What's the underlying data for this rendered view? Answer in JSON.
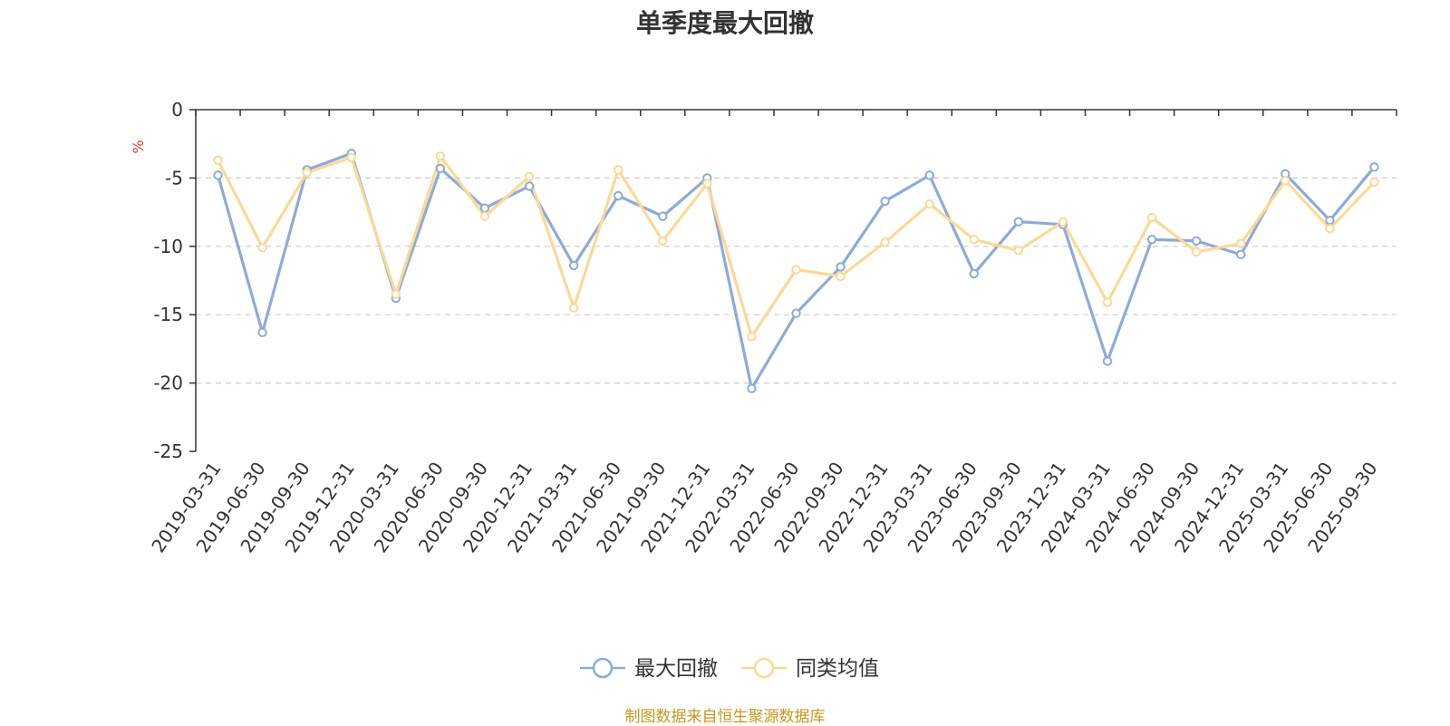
{
  "chart_data": {
    "type": "line",
    "title": "单季度最大回撤",
    "ylabel": "%",
    "ylim": [
      -25,
      0
    ],
    "yticks": [
      0,
      -5,
      -10,
      -15,
      -20,
      -25
    ],
    "grid": true,
    "legend_position": "bottom",
    "categories": [
      "2019-03-31",
      "2019-06-30",
      "2019-09-30",
      "2019-12-31",
      "2020-03-31",
      "2020-06-30",
      "2020-09-30",
      "2020-12-31",
      "2021-03-31",
      "2021-06-30",
      "2021-09-30",
      "2021-12-31",
      "2022-03-31",
      "2022-06-30",
      "2022-09-30",
      "2022-12-31",
      "2023-03-31",
      "2023-06-30",
      "2023-09-30",
      "2023-12-31",
      "2024-03-31",
      "2024-06-30",
      "2024-09-30",
      "2024-12-31",
      "2025-03-31",
      "2025-06-30",
      "2025-09-30"
    ],
    "series": [
      {
        "name": "最大回撤",
        "color": "#8eaad8",
        "values": [
          -4.8,
          -16.3,
          -4.4,
          -3.2,
          -13.8,
          -4.3,
          -7.2,
          -5.6,
          -11.4,
          -6.3,
          -7.8,
          -5.0,
          -20.4,
          -14.9,
          -11.5,
          -6.7,
          -4.8,
          -12.0,
          -8.2,
          -8.4,
          -18.4,
          -9.5,
          -9.6,
          -10.6,
          -4.7,
          -8.1,
          -4.2
        ]
      },
      {
        "name": "同类均值",
        "color": "#fbd996",
        "values": [
          -3.7,
          -10.1,
          -4.6,
          -3.5,
          -13.5,
          -3.4,
          -7.8,
          -4.9,
          -14.5,
          -4.4,
          -9.6,
          -5.4,
          -16.6,
          -11.7,
          -12.2,
          -9.7,
          -6.9,
          -9.5,
          -10.3,
          -8.2,
          -14.1,
          -7.9,
          -10.4,
          -9.8,
          -5.2,
          -8.7,
          -5.3
        ]
      }
    ]
  },
  "footer": {
    "source": "制图数据来自恒生聚源数据库"
  }
}
